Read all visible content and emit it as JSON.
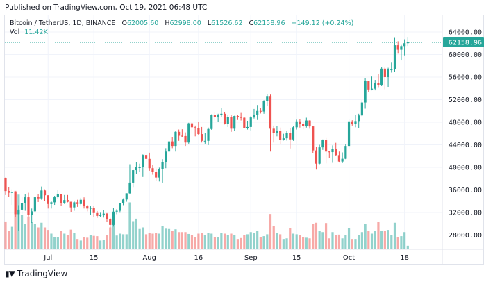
{
  "published": "Published on TradingView.com, Oct 19, 2021 06:48 UTC",
  "legend": {
    "symbol": "Bitcoin / TetherUS, 1D, BINANCE",
    "o_label": "O",
    "o": "62005.60",
    "h_label": "H",
    "h": "62998.00",
    "l_label": "L",
    "l": "61526.62",
    "c_label": "C",
    "c": "62158.96",
    "change": "+149.12 (+0.24%)",
    "vol_label": "Vol",
    "vol": "11.42K"
  },
  "branding": {
    "logo_text": "TradingView",
    "logo_mark": "TV"
  },
  "colors": {
    "up": "#26a69a",
    "down": "#ef5350",
    "grid": "#f0f3fa",
    "text": "#131722"
  },
  "chart_data": {
    "type": "candlestick",
    "title": "Bitcoin / TetherUS, 1D, BINANCE",
    "ylim": [
      26000,
      65500
    ],
    "yticks": [
      "64000.00",
      "60000.00",
      "56000.00",
      "52000.00",
      "48000.00",
      "44000.00",
      "40000.00",
      "36000.00",
      "32000.00",
      "28000.00"
    ],
    "ytick_values": [
      64000,
      60000,
      56000,
      52000,
      48000,
      44000,
      40000,
      36000,
      32000,
      28000
    ],
    "last_price_label": "62158.96",
    "last_price": 62158.96,
    "xticks": [
      {
        "label": "Jul",
        "date": "2021-07-01"
      },
      {
        "label": "15",
        "date": "2021-07-15"
      },
      {
        "label": "Aug",
        "date": "2021-08-01"
      },
      {
        "label": "16",
        "date": "2021-08-16"
      },
      {
        "label": "Sep",
        "date": "2021-09-01"
      },
      {
        "label": "15",
        "date": "2021-09-15"
      },
      {
        "label": "Oct",
        "date": "2021-10-01"
      },
      {
        "label": "18",
        "date": "2021-10-18"
      }
    ],
    "grid": true,
    "volume_unit": "K",
    "columns": [
      "date",
      "open",
      "high",
      "low",
      "close",
      "volume"
    ],
    "candles": [
      [
        "2021-06-18",
        38100,
        38200,
        35100,
        35800,
        89
      ],
      [
        "2021-06-19",
        35800,
        36450,
        34800,
        35500,
        60
      ],
      [
        "2021-06-20",
        35500,
        36100,
        33350,
        35600,
        72
      ],
      [
        "2021-06-21",
        35600,
        35750,
        31250,
        31700,
        187
      ],
      [
        "2021-06-22",
        31700,
        33300,
        28800,
        32500,
        175
      ],
      [
        "2021-06-23",
        32500,
        34850,
        31700,
        33700,
        110
      ],
      [
        "2021-06-24",
        33700,
        35250,
        32300,
        34700,
        80
      ],
      [
        "2021-06-25",
        34700,
        35500,
        31300,
        31600,
        105
      ],
      [
        "2021-06-26",
        31600,
        32700,
        30150,
        32200,
        88
      ],
      [
        "2021-06-27",
        32200,
        34750,
        32000,
        34700,
        80
      ],
      [
        "2021-06-28",
        34700,
        35300,
        33850,
        34500,
        70
      ],
      [
        "2021-06-29",
        34500,
        36600,
        34250,
        35900,
        85
      ],
      [
        "2021-06-30",
        35900,
        36100,
        34000,
        35050,
        70
      ],
      [
        "2021-07-01",
        35050,
        35050,
        32700,
        33500,
        62
      ],
      [
        "2021-07-02",
        33500,
        33950,
        32700,
        33800,
        50
      ],
      [
        "2021-07-03",
        33800,
        34950,
        33350,
        34700,
        40
      ],
      [
        "2021-07-04",
        34700,
        35950,
        34450,
        35300,
        40
      ],
      [
        "2021-07-05",
        35300,
        35300,
        33200,
        33700,
        58
      ],
      [
        "2021-07-06",
        33700,
        35100,
        33500,
        34200,
        50
      ],
      [
        "2021-07-07",
        34200,
        35100,
        33800,
        33900,
        46
      ],
      [
        "2021-07-08",
        33900,
        33900,
        32100,
        32900,
        63
      ],
      [
        "2021-07-09",
        32900,
        34100,
        32300,
        33800,
        52
      ],
      [
        "2021-07-10",
        33800,
        34250,
        33000,
        33500,
        33
      ],
      [
        "2021-07-11",
        33500,
        34600,
        33300,
        34250,
        28
      ],
      [
        "2021-07-12",
        34250,
        34680,
        32700,
        33100,
        40
      ],
      [
        "2021-07-13",
        33100,
        33350,
        32200,
        32700,
        37
      ],
      [
        "2021-07-14",
        32700,
        33100,
        31600,
        32800,
        45
      ],
      [
        "2021-07-15",
        32800,
        33200,
        31150,
        31900,
        43
      ],
      [
        "2021-07-16",
        31900,
        32250,
        31050,
        31400,
        42
      ],
      [
        "2021-07-17",
        31400,
        31950,
        31150,
        31500,
        28
      ],
      [
        "2021-07-18",
        31500,
        32450,
        31100,
        31800,
        30
      ],
      [
        "2021-07-19",
        31800,
        31900,
        30400,
        30800,
        45
      ],
      [
        "2021-07-20",
        30800,
        31050,
        29300,
        29800,
        70
      ],
      [
        "2021-07-21",
        29800,
        32850,
        29500,
        32150,
        95
      ],
      [
        "2021-07-22",
        32150,
        32600,
        31700,
        32300,
        44
      ],
      [
        "2021-07-23",
        32300,
        33650,
        31950,
        33600,
        50
      ],
      [
        "2021-07-24",
        33600,
        34500,
        33300,
        34300,
        48
      ],
      [
        "2021-07-25",
        34300,
        35400,
        33900,
        35400,
        48
      ],
      [
        "2021-07-26",
        35400,
        40550,
        35200,
        37300,
        150
      ],
      [
        "2021-07-27",
        37300,
        39550,
        36400,
        39500,
        90
      ],
      [
        "2021-07-28",
        39500,
        40900,
        38800,
        40000,
        98
      ],
      [
        "2021-07-29",
        40000,
        40650,
        39200,
        40000,
        65
      ],
      [
        "2021-07-30",
        40000,
        42300,
        38300,
        42200,
        70
      ],
      [
        "2021-07-31",
        42200,
        42400,
        41000,
        41500,
        48
      ],
      [
        "2021-08-01",
        41500,
        42600,
        39400,
        39850,
        52
      ],
      [
        "2021-08-02",
        39850,
        40450,
        38700,
        39150,
        50
      ],
      [
        "2021-08-03",
        39150,
        39800,
        37650,
        38200,
        53
      ],
      [
        "2021-08-04",
        38200,
        39950,
        37500,
        39700,
        50
      ],
      [
        "2021-08-05",
        39700,
        41450,
        37300,
        40900,
        75
      ],
      [
        "2021-08-06",
        40900,
        43400,
        39850,
        42800,
        66
      ],
      [
        "2021-08-07",
        42800,
        44750,
        42450,
        44600,
        65
      ],
      [
        "2021-08-08",
        44600,
        45350,
        43400,
        43800,
        58
      ],
      [
        "2021-08-09",
        43800,
        46450,
        42800,
        46300,
        64
      ],
      [
        "2021-08-10",
        46300,
        46700,
        44700,
        45600,
        55
      ],
      [
        "2021-08-11",
        45600,
        46750,
        45350,
        45550,
        55
      ],
      [
        "2021-08-12",
        45550,
        46200,
        43800,
        44400,
        55
      ],
      [
        "2021-08-13",
        44400,
        47900,
        44200,
        47800,
        49
      ],
      [
        "2021-08-14",
        47800,
        48150,
        45950,
        47100,
        45
      ],
      [
        "2021-08-15",
        47100,
        47400,
        45500,
        47000,
        40
      ],
      [
        "2021-08-16",
        47000,
        48050,
        45700,
        45900,
        50
      ],
      [
        "2021-08-17",
        45900,
        47150,
        44400,
        44700,
        52
      ],
      [
        "2021-08-18",
        44700,
        46050,
        44200,
        44700,
        45
      ],
      [
        "2021-08-19",
        44700,
        47050,
        43950,
        46800,
        53
      ],
      [
        "2021-08-20",
        46800,
        49400,
        46650,
        49300,
        50
      ],
      [
        "2021-08-21",
        49300,
        49800,
        48300,
        48900,
        40
      ],
      [
        "2021-08-22",
        48900,
        49500,
        48000,
        49300,
        38
      ],
      [
        "2021-08-23",
        49300,
        50500,
        49000,
        49500,
        52
      ],
      [
        "2021-08-24",
        49500,
        49850,
        47600,
        47700,
        50
      ],
      [
        "2021-08-25",
        47700,
        49300,
        47150,
        48950,
        45
      ],
      [
        "2021-08-26",
        48950,
        49350,
        46300,
        46850,
        50
      ],
      [
        "2021-08-27",
        46850,
        49150,
        46400,
        49100,
        45
      ],
      [
        "2021-08-28",
        49100,
        49300,
        48400,
        48900,
        33
      ],
      [
        "2021-08-29",
        48900,
        49650,
        48300,
        48800,
        36
      ],
      [
        "2021-08-30",
        48800,
        48900,
        46900,
        47000,
        45
      ],
      [
        "2021-08-31",
        47000,
        48250,
        46700,
        47150,
        48
      ],
      [
        "2021-09-01",
        47150,
        49100,
        46550,
        48850,
        55
      ],
      [
        "2021-09-02",
        48850,
        50350,
        48650,
        49300,
        52
      ],
      [
        "2021-09-03",
        49300,
        51050,
        48400,
        50000,
        58
      ],
      [
        "2021-09-04",
        50000,
        50550,
        49550,
        49900,
        40
      ],
      [
        "2021-09-05",
        49900,
        51900,
        49500,
        51750,
        42
      ],
      [
        "2021-09-06",
        51750,
        52950,
        50950,
        52650,
        48
      ],
      [
        "2021-09-07",
        52650,
        52900,
        42800,
        46850,
        113
      ],
      [
        "2021-09-08",
        46850,
        47400,
        44400,
        46050,
        75
      ],
      [
        "2021-09-09",
        46050,
        47350,
        45500,
        46400,
        52
      ],
      [
        "2021-09-10",
        46400,
        47050,
        44150,
        44850,
        48
      ],
      [
        "2021-09-11",
        44850,
        45950,
        44750,
        45150,
        33
      ],
      [
        "2021-09-12",
        45150,
        46450,
        44750,
        46050,
        35
      ],
      [
        "2021-09-13",
        46050,
        46900,
        43350,
        44950,
        67
      ],
      [
        "2021-09-14",
        44950,
        47250,
        44700,
        47100,
        50
      ],
      [
        "2021-09-15",
        47100,
        48450,
        46700,
        48150,
        48
      ],
      [
        "2021-09-16",
        48150,
        48500,
        47050,
        47750,
        45
      ],
      [
        "2021-09-17",
        47750,
        48150,
        46750,
        47300,
        40
      ],
      [
        "2021-09-18",
        47300,
        48800,
        47050,
        48300,
        37
      ],
      [
        "2021-09-19",
        48300,
        48350,
        46850,
        47250,
        35
      ],
      [
        "2021-09-20",
        47250,
        47350,
        42500,
        43000,
        80
      ],
      [
        "2021-09-21",
        43000,
        43650,
        39600,
        40650,
        85
      ],
      [
        "2021-09-22",
        40650,
        44000,
        40550,
        43550,
        60
      ],
      [
        "2021-09-23",
        43550,
        44950,
        43100,
        44850,
        55
      ],
      [
        "2021-09-24",
        44850,
        45200,
        40700,
        42800,
        84
      ],
      [
        "2021-09-25",
        42800,
        42950,
        41650,
        42700,
        35
      ],
      [
        "2021-09-26",
        42700,
        43900,
        40800,
        43200,
        55
      ],
      [
        "2021-09-27",
        43200,
        44350,
        42100,
        42170,
        45
      ],
      [
        "2021-09-28",
        42170,
        42800,
        40850,
        41030,
        47
      ],
      [
        "2021-09-29",
        41030,
        42650,
        40750,
        41520,
        35
      ],
      [
        "2021-09-30",
        41520,
        44150,
        41450,
        43800,
        45
      ],
      [
        "2021-10-01",
        43800,
        48500,
        43300,
        48150,
        68
      ],
      [
        "2021-10-02",
        48150,
        48350,
        47400,
        47650,
        33
      ],
      [
        "2021-10-03",
        47650,
        49300,
        47100,
        48200,
        33
      ],
      [
        "2021-10-04",
        48200,
        49500,
        46900,
        49200,
        45
      ],
      [
        "2021-10-05",
        49200,
        51900,
        49050,
        51500,
        55
      ],
      [
        "2021-10-06",
        51500,
        55750,
        50400,
        55300,
        80
      ],
      [
        "2021-10-07",
        55300,
        55350,
        53400,
        53800,
        58
      ],
      [
        "2021-10-08",
        53800,
        56100,
        53650,
        53950,
        50
      ],
      [
        "2021-10-09",
        53950,
        55500,
        53650,
        54950,
        60
      ],
      [
        "2021-10-10",
        54950,
        56550,
        54100,
        54650,
        88
      ],
      [
        "2021-10-11",
        54650,
        57800,
        54400,
        57500,
        60
      ],
      [
        "2021-10-12",
        57500,
        57700,
        53850,
        56000,
        60
      ],
      [
        "2021-10-13",
        56000,
        57650,
        54250,
        57350,
        62
      ],
      [
        "2021-10-14",
        57350,
        58550,
        56800,
        57350,
        45
      ],
      [
        "2021-10-15",
        57350,
        62950,
        56900,
        61650,
        85
      ],
      [
        "2021-10-16",
        61650,
        62350,
        60150,
        60850,
        40
      ],
      [
        "2021-10-17",
        60850,
        61700,
        58950,
        61500,
        42
      ],
      [
        "2021-10-18",
        61500,
        62700,
        59850,
        62000,
        55
      ],
      [
        "2021-10-19",
        62005.6,
        62998,
        61526.62,
        62158.96,
        11.42
      ]
    ]
  }
}
